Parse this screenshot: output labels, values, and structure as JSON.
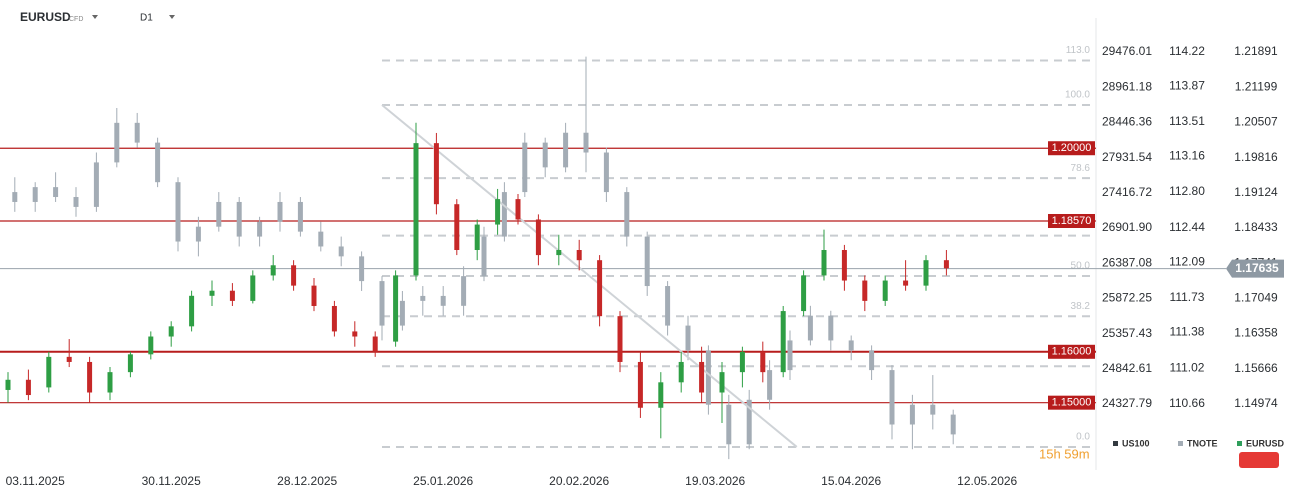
{
  "chart_data": {
    "type": "candlestick",
    "symbol": "EURUSD",
    "instrument_type": "CFD",
    "timeframe": "D1",
    "timer": "15h 59m",
    "xlim": [
      0,
      160
    ],
    "xticks": [
      {
        "value": 4,
        "label": "03.11.2025"
      },
      {
        "value": 24,
        "label": "30.11.2025"
      },
      {
        "value": 44,
        "label": "28.12.2025"
      },
      {
        "value": 64,
        "label": "25.01.2026"
      },
      {
        "value": 84,
        "label": "20.02.2026"
      },
      {
        "value": 104,
        "label": "19.03.2026"
      },
      {
        "value": 124,
        "label": "15.04.2026"
      },
      {
        "value": 144,
        "label": "12.05.2026"
      }
    ],
    "ylim": [
      1.13677,
      1.22559
    ],
    "yticks": [
      1.21891,
      1.21199,
      1.20507,
      1.19816,
      1.19124,
      1.18433,
      1.17741,
      1.17049,
      1.16358,
      1.15666,
      1.14974
    ],
    "y2lim": [
      109.99,
      114.56
    ],
    "y2ticks": [
      114.22,
      113.87,
      113.51,
      113.16,
      {
        "value": 112.8,
        "label": "112.80"
      },
      112.44,
      112.09,
      111.73,
      111.38,
      111.02,
      110.66
    ],
    "y3lim": [
      23362.5,
      29973.3
    ],
    "y3ticks": [
      29476.01,
      28961.18,
      28446.36,
      27931.54,
      27416.72,
      {
        "value": 26901.9,
        "label": "26901.90"
      },
      26387.08,
      25872.25,
      25357.43,
      24842.61,
      24327.79
    ],
    "last_price": 1.17635,
    "levels": [
      {
        "value": 1.2,
        "label": "1.20000"
      },
      {
        "value": 1.1857,
        "label": "1.18570"
      },
      {
        "value": 1.16,
        "label": "1.16000"
      },
      {
        "value": 1.15,
        "label": "1.15000"
      }
    ],
    "level_color": "#b71c1c",
    "fibonacci": {
      "x_start": 55,
      "start": 1.2085,
      "end": 1.1413,
      "color": "#c8ccd0",
      "levels": [
        {
          "value": 113,
          "label": "113.0"
        },
        {
          "value": 100,
          "label": "100.0"
        },
        {
          "value": 78.6,
          "label": "78.6"
        },
        {
          "value": 61.8,
          "label": "61.8"
        },
        {
          "value": 50,
          "label": "50.0"
        },
        {
          "value": 38.2,
          "label": "38.2"
        },
        {
          "value": 23.6,
          "label": "23.6"
        },
        {
          "value": 0,
          "label": "0.0"
        }
      ]
    },
    "trendline": {
      "x": [
        55,
        116
      ],
      "y": [
        1.2085,
        1.1413
      ],
      "color": "#cfd3d7"
    },
    "series": [
      {
        "name": "US100",
        "color": "#333a40",
        "axis": "y3"
      },
      {
        "name": "TNOTE",
        "color": "#a3acb5",
        "axis": "y2",
        "up_color": "#a3acb5",
        "down_color": "#a3acb5",
        "x": [
          1,
          4,
          7,
          10,
          13,
          16,
          19,
          22,
          25,
          28,
          31,
          34,
          37,
          40,
          43,
          46,
          49,
          52,
          55,
          58,
          61,
          64,
          67,
          70,
          73,
          76,
          79,
          82,
          85,
          88,
          91,
          94,
          97,
          100,
          103,
          106,
          109,
          112,
          115,
          118,
          121,
          124,
          127,
          130,
          133,
          136,
          139
        ],
        "open": [
          112.8,
          112.7,
          112.85,
          112.75,
          112.65,
          113.1,
          113.5,
          113.3,
          112.9,
          112.3,
          112.45,
          112.7,
          112.35,
          112.5,
          112.7,
          112.4,
          112.25,
          112.15,
          111.9,
          111.45,
          111.7,
          111.75,
          111.65,
          111.95,
          112.35,
          112.8,
          113.3,
          113.05,
          113.4,
          113.2,
          112.8,
          112.35,
          111.85,
          111.45,
          111.2,
          110.65,
          110.25,
          110.7,
          111.0,
          111.3,
          111.55,
          111.3,
          111.2,
          111.0,
          110.45,
          110.65,
          110.55
        ],
        "high": [
          112.95,
          112.9,
          113.0,
          112.85,
          113.2,
          113.65,
          113.6,
          113.35,
          112.95,
          112.55,
          112.8,
          112.75,
          112.55,
          112.8,
          112.75,
          112.5,
          112.35,
          112.2,
          111.95,
          111.8,
          111.85,
          111.85,
          112.05,
          112.45,
          112.9,
          113.4,
          113.35,
          113.5,
          114.17,
          113.25,
          112.85,
          112.4,
          111.9,
          111.55,
          111.25,
          110.75,
          110.8,
          111.1,
          111.4,
          111.65,
          111.6,
          111.35,
          111.25,
          111.05,
          110.75,
          110.95,
          110.6
        ],
        "low": [
          112.6,
          112.6,
          112.7,
          112.55,
          112.6,
          113.05,
          113.25,
          112.85,
          112.2,
          112.15,
          112.4,
          112.25,
          112.25,
          112.4,
          112.35,
          112.2,
          112.05,
          111.8,
          111.3,
          111.4,
          111.55,
          111.55,
          111.55,
          111.9,
          112.3,
          112.75,
          112.95,
          113.0,
          113.0,
          112.7,
          112.25,
          111.75,
          111.35,
          111.1,
          110.55,
          110.1,
          110.2,
          110.6,
          110.9,
          111.25,
          111.2,
          111.1,
          110.9,
          110.3,
          110.2,
          110.4,
          110.25
        ],
        "close": [
          112.7,
          112.85,
          112.75,
          112.65,
          113.1,
          113.5,
          113.3,
          112.9,
          112.3,
          112.45,
          112.7,
          112.35,
          112.5,
          112.7,
          112.4,
          112.25,
          112.15,
          111.9,
          111.45,
          111.7,
          111.75,
          111.65,
          111.95,
          112.35,
          112.8,
          113.3,
          113.05,
          113.4,
          113.2,
          112.8,
          112.35,
          111.85,
          111.45,
          111.2,
          110.65,
          110.25,
          110.7,
          111.0,
          111.3,
          111.55,
          111.3,
          111.2,
          111.0,
          110.45,
          110.65,
          110.55,
          110.35
        ]
      },
      {
        "name": "EURUSD",
        "color": "#2e9e5b",
        "axis": "y",
        "up_color": "#2e9e44",
        "down_color": "#c62828",
        "x": [
          0,
          3,
          6,
          9,
          12,
          15,
          18,
          21,
          24,
          27,
          30,
          33,
          36,
          39,
          42,
          45,
          48,
          51,
          54,
          57,
          60,
          63,
          66,
          69,
          72,
          75,
          78,
          81,
          84,
          87,
          90,
          93,
          96,
          99,
          102,
          105,
          108,
          111,
          114,
          117,
          120,
          123,
          126,
          129,
          132,
          135,
          138
        ],
        "open": [
          1.1525,
          1.1545,
          1.153,
          1.159,
          1.158,
          1.152,
          1.156,
          1.1595,
          1.163,
          1.165,
          1.171,
          1.172,
          1.17,
          1.175,
          1.177,
          1.173,
          1.169,
          1.164,
          1.163,
          1.162,
          1.175,
          1.201,
          1.189,
          1.18,
          1.185,
          1.19,
          1.186,
          1.179,
          1.18,
          1.178,
          1.167,
          1.158,
          1.149,
          1.154,
          1.158,
          1.152,
          1.156,
          1.16,
          1.156,
          1.168,
          1.175,
          1.18,
          1.174,
          1.17,
          1.174,
          1.173,
          1.178
        ],
        "high": [
          1.156,
          1.1565,
          1.16,
          1.1625,
          1.159,
          1.157,
          1.16,
          1.164,
          1.166,
          1.172,
          1.174,
          1.1735,
          1.176,
          1.179,
          1.178,
          1.1745,
          1.17,
          1.166,
          1.164,
          1.176,
          1.205,
          1.203,
          1.19,
          1.186,
          1.192,
          1.191,
          1.187,
          1.183,
          1.182,
          1.179,
          1.168,
          1.16,
          1.156,
          1.16,
          1.161,
          1.158,
          1.161,
          1.162,
          1.169,
          1.176,
          1.184,
          1.181,
          1.175,
          1.175,
          1.178,
          1.179,
          1.18
        ],
        "low": [
          1.15,
          1.1505,
          1.152,
          1.157,
          1.15,
          1.1505,
          1.155,
          1.1585,
          1.161,
          1.164,
          1.169,
          1.169,
          1.1695,
          1.174,
          1.172,
          1.168,
          1.163,
          1.161,
          1.159,
          1.161,
          1.174,
          1.187,
          1.179,
          1.178,
          1.183,
          1.185,
          1.177,
          1.177,
          1.176,
          1.165,
          1.156,
          1.147,
          1.143,
          1.152,
          1.15,
          1.146,
          1.153,
          1.154,
          1.155,
          1.167,
          1.174,
          1.172,
          1.168,
          1.169,
          1.172,
          1.172,
          1.175
        ],
        "close": [
          1.1545,
          1.1515,
          1.159,
          1.158,
          1.152,
          1.156,
          1.1595,
          1.163,
          1.165,
          1.171,
          1.172,
          1.17,
          1.175,
          1.177,
          1.173,
          1.169,
          1.164,
          1.163,
          1.16,
          1.175,
          1.201,
          1.189,
          1.18,
          1.185,
          1.19,
          1.186,
          1.179,
          1.18,
          1.178,
          1.167,
          1.158,
          1.149,
          1.154,
          1.158,
          1.152,
          1.156,
          1.16,
          1.156,
          1.168,
          1.175,
          1.18,
          1.174,
          1.17,
          1.174,
          1.173,
          1.178,
          1.1764
        ]
      }
    ]
  }
}
